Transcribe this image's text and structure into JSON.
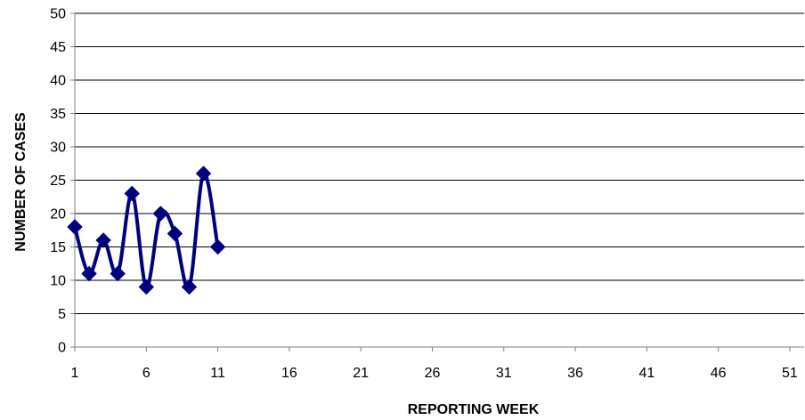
{
  "chart_data": {
    "type": "line",
    "title": "",
    "xlabel": "REPORTING WEEK",
    "ylabel": "NUMBER OF CASES",
    "xlim": [
      1,
      52
    ],
    "ylim": [
      0,
      50
    ],
    "x_ticks": [
      1,
      6,
      11,
      16,
      21,
      26,
      31,
      36,
      41,
      46,
      51
    ],
    "y_ticks": [
      0,
      5,
      10,
      15,
      20,
      25,
      30,
      35,
      40,
      45,
      50
    ],
    "grid": "horizontal",
    "legend": "none",
    "series": [
      {
        "color": "#000080",
        "marker": "diamond",
        "smooth": true,
        "x": [
          1,
          2,
          3,
          4,
          5,
          6,
          7,
          8,
          9,
          10,
          11
        ],
        "values": [
          18,
          11,
          16,
          11,
          23,
          9,
          20,
          17,
          9,
          26,
          15
        ]
      }
    ]
  }
}
